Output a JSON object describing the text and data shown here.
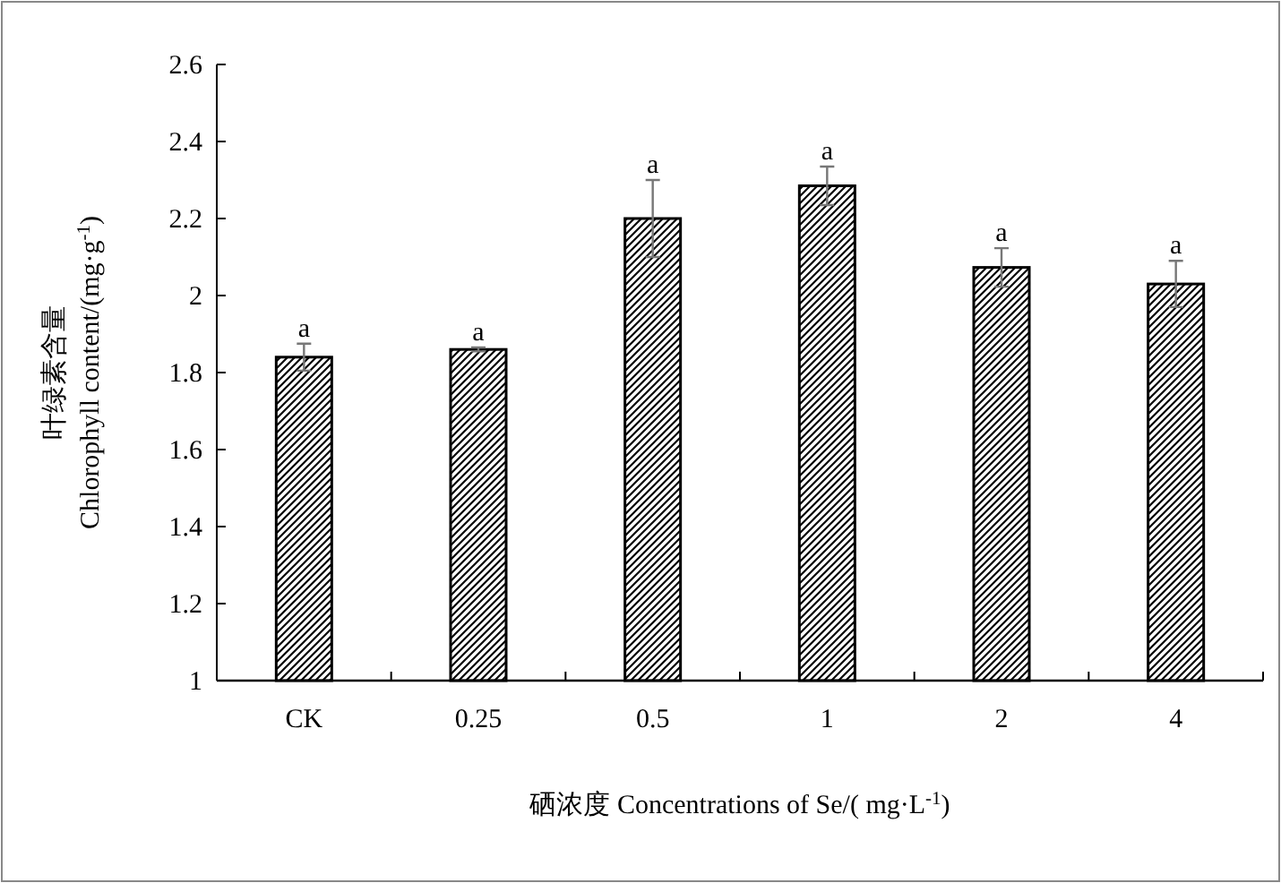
{
  "chart_data": {
    "type": "bar",
    "xlabel": "硒浓度 Concentrations of Se/( mg·L$^{-1}$)",
    "ylabel": "叶绿素含量\nChlorophyll content/(mg·g$^{-1}$)",
    "categories": [
      "CK",
      "0.25",
      "0.5",
      "1",
      "2",
      "4"
    ],
    "values": [
      1.84,
      1.86,
      2.2,
      2.285,
      2.073,
      2.03
    ],
    "errors": [
      0.035,
      0.005,
      0.1,
      0.05,
      0.05,
      0.06
    ],
    "color": "#000000",
    "ylim": [
      1,
      2.6
    ],
    "yticks": [
      1,
      1.2,
      1.4,
      1.6,
      1.8,
      2,
      2.2,
      2.4,
      2.6
    ],
    "annotations": [
      {
        "text": "a",
        "x": "CK",
        "y": 1.875
      },
      {
        "text": "a",
        "x": "0.25",
        "y": 1.865
      },
      {
        "text": "a",
        "x": "0.5",
        "y": 2.3
      },
      {
        "text": "a",
        "x": "1",
        "y": 2.335
      },
      {
        "text": "a",
        "x": "2",
        "y": 2.123
      },
      {
        "text": "a",
        "x": "4",
        "y": 2.09
      }
    ]
  }
}
